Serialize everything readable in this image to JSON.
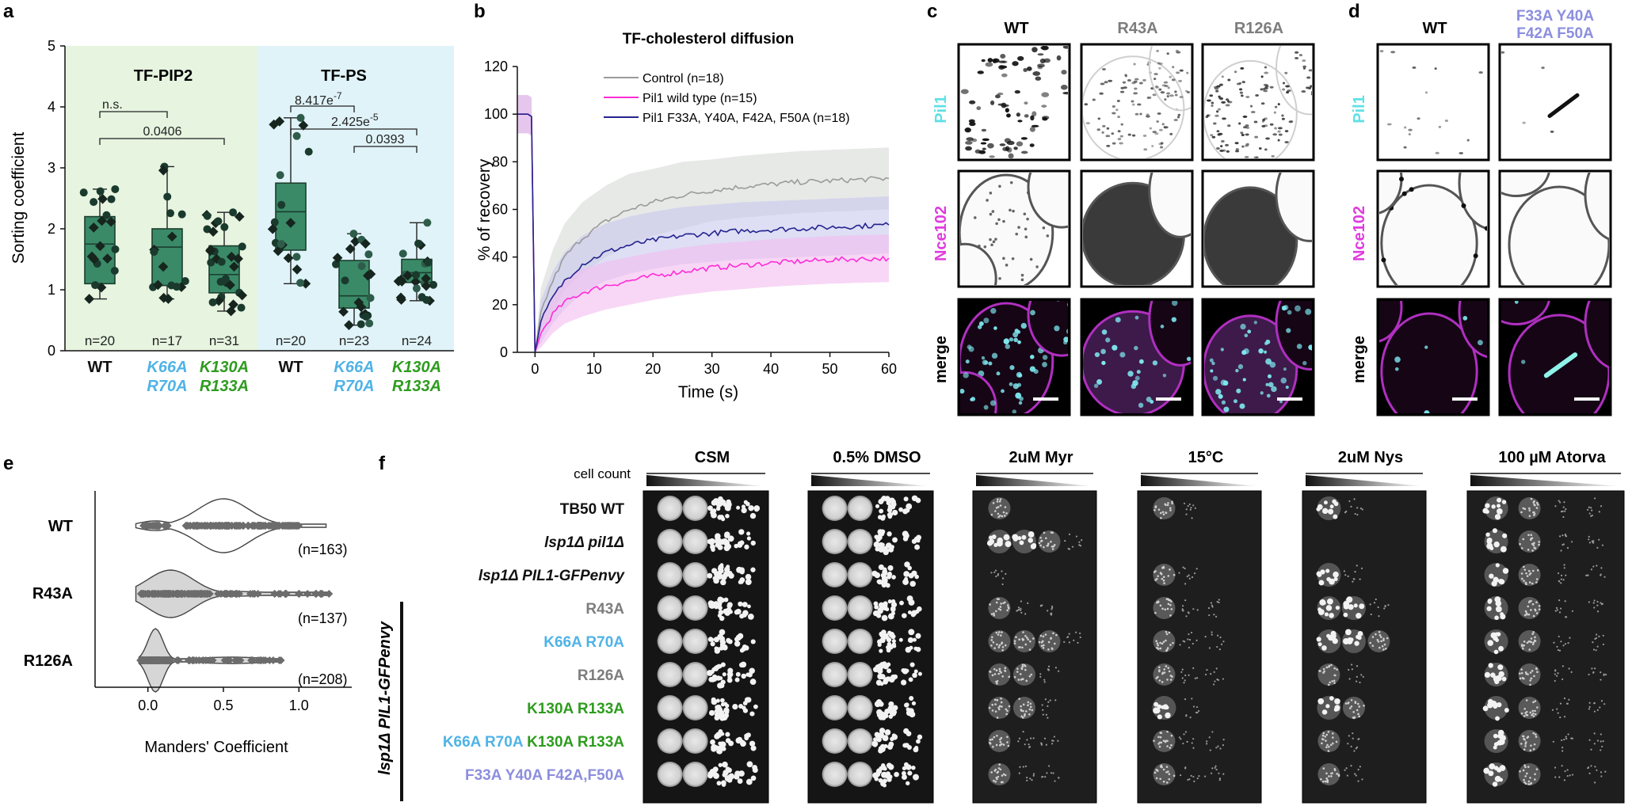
{
  "colors": {
    "black": "#111111",
    "green_header": "#2e9c1f",
    "cyan_text": "#4fb3e6",
    "gray_text": "#7d7d7d",
    "lavender_text": "#8c8ede",
    "pil1_label": "#5fe0e6",
    "nce_label": "#e03ae0",
    "pink_series": "#ff2bd6",
    "navy_series": "#24248f",
    "gray_series": "#9a9a9a",
    "panel_pip2_bg": "#e6f4e0",
    "panel_ps_bg": "#e0f3f8",
    "box_fill": "#3a8a68"
  },
  "panel_labels": {
    "a": "a",
    "b": "b",
    "c": "c",
    "d": "d",
    "e": "e",
    "f": "f"
  },
  "panel_a": {
    "y_axis_label": "Sorting coefficient",
    "y_ticks": [
      "0",
      "1",
      "2",
      "3",
      "4",
      "5"
    ],
    "group1_title": "TF-PIP2",
    "group2_title": "TF-PS",
    "ns_label": "n.s.",
    "p1": "0.0406",
    "p2": "8.417e",
    "p2_exp": "-7",
    "p3": "2.425e",
    "p3_exp": "-5",
    "p4": "0.0393",
    "x_labels": [
      {
        "line1": "WT",
        "line2": "",
        "color": "#111111"
      },
      {
        "line1": "K66A",
        "line2": "R70A",
        "color": "#4fb3e6"
      },
      {
        "line1": "K130A",
        "line2": "R133A",
        "color": "#2e9c1f"
      },
      {
        "line1": "WT",
        "line2": "",
        "color": "#111111"
      },
      {
        "line1": "K66A",
        "line2": "R70A",
        "color": "#4fb3e6"
      },
      {
        "line1": "K130A",
        "line2": "R133A",
        "color": "#2e9c1f"
      }
    ],
    "n_labels": [
      "n=20",
      "n=17",
      "n=31",
      "n=20",
      "n=23",
      "n=24"
    ]
  },
  "chart_data": [
    {
      "type": "box",
      "panel": "a",
      "title": "",
      "ylabel": "Sorting coefficient",
      "ylim": [
        0,
        5
      ],
      "categories": [
        "WT",
        "K66A R70A",
        "K130A R133A",
        "WT",
        "K66A R70A",
        "K130A R133A"
      ],
      "groups": [
        "TF-PIP2",
        "TF-PIP2",
        "TF-PIP2",
        "TF-PS",
        "TF-PS",
        "TF-PS"
      ],
      "boxes": [
        {
          "min": 0.85,
          "q1": 1.1,
          "median": 1.75,
          "q3": 2.2,
          "max": 2.65
        },
        {
          "min": 0.85,
          "q1": 1.07,
          "median": 1.7,
          "q3": 2.0,
          "max": 3.02
        },
        {
          "min": 0.65,
          "q1": 0.95,
          "median": 1.25,
          "q3": 1.72,
          "max": 2.27
        },
        {
          "min": 1.1,
          "q1": 1.65,
          "median": 2.28,
          "q3": 2.75,
          "max": 3.82
        },
        {
          "min": 0.42,
          "q1": 0.7,
          "median": 0.9,
          "q3": 1.48,
          "max": 1.92
        },
        {
          "min": 0.82,
          "q1": 1.12,
          "median": 1.28,
          "q3": 1.5,
          "max": 2.1
        }
      ]
    },
    {
      "type": "line",
      "panel": "b",
      "title": "TF-cholesterol diffusion",
      "xlabel": "Time (s)",
      "ylabel": "% of recovery",
      "xlim": [
        -3,
        60
      ],
      "ylim": [
        0,
        120
      ],
      "x_ticks": [
        0,
        10,
        20,
        30,
        40,
        50,
        60
      ],
      "y_ticks": [
        0,
        20,
        40,
        60,
        80,
        100,
        120
      ],
      "legend_position": "top-right",
      "series": [
        {
          "name": "Control (n=18)",
          "color": "#9a9a9a",
          "x": [
            -3,
            -1.2,
            -0.6,
            0,
            1,
            3,
            5,
            8,
            12,
            16,
            20,
            25,
            30,
            35,
            40,
            45,
            50,
            55,
            60
          ],
          "y": [
            100,
            100,
            99,
            0,
            17,
            30,
            40,
            48,
            55,
            60,
            63,
            66,
            68,
            69.5,
            70.5,
            71.5,
            72,
            72.5,
            73
          ],
          "sd": [
            8,
            8,
            8,
            0,
            10,
            13,
            14,
            15,
            15,
            15,
            14,
            14,
            13,
            13,
            13,
            13,
            13,
            13,
            13
          ]
        },
        {
          "name": "Pil1 wild type (n=15)",
          "color": "#ff2bd6",
          "x": [
            -3,
            -1.2,
            -0.6,
            0,
            1,
            3,
            5,
            8,
            12,
            16,
            20,
            25,
            30,
            35,
            40,
            45,
            50,
            55,
            60
          ],
          "y": [
            100,
            100,
            99,
            0,
            8,
            16,
            21,
            25,
            28,
            30,
            32,
            34,
            35.5,
            36.5,
            37.5,
            38.2,
            38.8,
            39.2,
            39.5
          ],
          "sd": [
            8,
            8,
            8,
            0,
            6,
            8,
            9,
            10,
            10,
            10,
            10,
            10,
            10,
            10,
            10,
            10,
            10,
            10,
            10
          ]
        },
        {
          "name": "Pil1 F33A, Y40A, F42A, F50A (n=18)",
          "color": "#24248f",
          "x": [
            -3,
            -1.2,
            -0.6,
            0,
            1,
            3,
            5,
            8,
            12,
            16,
            20,
            25,
            30,
            35,
            40,
            45,
            50,
            55,
            60
          ],
          "y": [
            100,
            100,
            99,
            0,
            13,
            23,
            30,
            37,
            42,
            45,
            47,
            49,
            50,
            51,
            51.5,
            52,
            52.5,
            53,
            53.5
          ],
          "sd": [
            8,
            8,
            8,
            0,
            9,
            11,
            12,
            12,
            12,
            12,
            12,
            12,
            12,
            12,
            12,
            12,
            12,
            12,
            12
          ]
        }
      ]
    },
    {
      "type": "violin",
      "panel": "e",
      "xlabel": "Manders' Coefficient",
      "xlim": [
        -0.35,
        1.35
      ],
      "x_ticks": [
        0.0,
        0.5,
        1.0
      ],
      "categories": [
        "WT",
        "R43A",
        "R126A"
      ],
      "n": [
        "(n=163)",
        "(n=137)",
        "(n=208)"
      ],
      "medians": [
        0.5,
        0.15,
        0.05
      ],
      "ranges": [
        [
          -0.08,
          1.18
        ],
        [
          -0.08,
          1.2
        ],
        [
          -0.06,
          0.89
        ]
      ]
    }
  ],
  "panel_b": {
    "title": "TF-cholesterol diffusion",
    "ylabel": "% of recovery",
    "xlabel": "Time (s)",
    "y_ticks": [
      "0",
      "20",
      "40",
      "60",
      "80",
      "100",
      "120"
    ],
    "x_ticks": [
      "0",
      "10",
      "20",
      "30",
      "40",
      "50",
      "60"
    ],
    "legend": [
      "Control (n=18)",
      "Pil1 wild type (n=15)",
      "Pil1 F33A, Y40A, F42A, F50A (n=18)"
    ]
  },
  "panel_c": {
    "col_labels": [
      "WT",
      "R43A",
      "R126A"
    ],
    "row_labels": [
      "Pil1",
      "Nce102",
      "merge"
    ]
  },
  "panel_d": {
    "col1": "WT",
    "col2_line1": "F33A Y40A",
    "col2_line2": "F42A F50A",
    "row_labels": [
      "Pil1",
      "Nce102",
      "merge"
    ]
  },
  "panel_e": {
    "categories": [
      "WT",
      "R43A",
      "R126A"
    ],
    "n_labels": [
      "(n=163)",
      "(n=137)",
      "(n=208)"
    ],
    "x_ticks": [
      "0.0",
      "0.5",
      "1.0"
    ],
    "xlabel": "Manders' Coefficient"
  },
  "panel_f": {
    "conditions": [
      "CSM",
      "0.5% DMSO",
      "2uM Myr",
      "15°C",
      "2uM Nys",
      "100 µM Atorva"
    ],
    "cell_count": "cell count",
    "strains": [
      {
        "parts": [
          {
            "t": "TB50 WT",
            "c": "#111111",
            "i": false
          }
        ]
      },
      {
        "parts": [
          {
            "t": "lsp1Δ pil1Δ",
            "c": "#111111",
            "i": true
          }
        ]
      },
      {
        "parts": [
          {
            "t": "lsp1Δ PIL1-GFPenvy",
            "c": "#111111",
            "i": true
          }
        ]
      },
      {
        "parts": [
          {
            "t": "R43A",
            "c": "#7d7d7d",
            "i": false
          }
        ]
      },
      {
        "parts": [
          {
            "t": "K66A R70A",
            "c": "#4fb3e6",
            "i": false
          }
        ]
      },
      {
        "parts": [
          {
            "t": "R126A",
            "c": "#7d7d7d",
            "i": false
          }
        ]
      },
      {
        "parts": [
          {
            "t": "K130A R133A",
            "c": "#2e9c1f",
            "i": false
          }
        ]
      },
      {
        "parts": [
          {
            "t": "K66A R70A ",
            "c": "#4fb3e6",
            "i": false
          },
          {
            "t": "K130A R133A",
            "c": "#2e9c1f",
            "i": false
          }
        ]
      },
      {
        "parts": [
          {
            "t": "F33A Y40A F42A,F50A",
            "c": "#8c8ede",
            "i": false
          }
        ]
      }
    ],
    "side_label": "lsp1Δ PIL1-GFPenvy"
  }
}
